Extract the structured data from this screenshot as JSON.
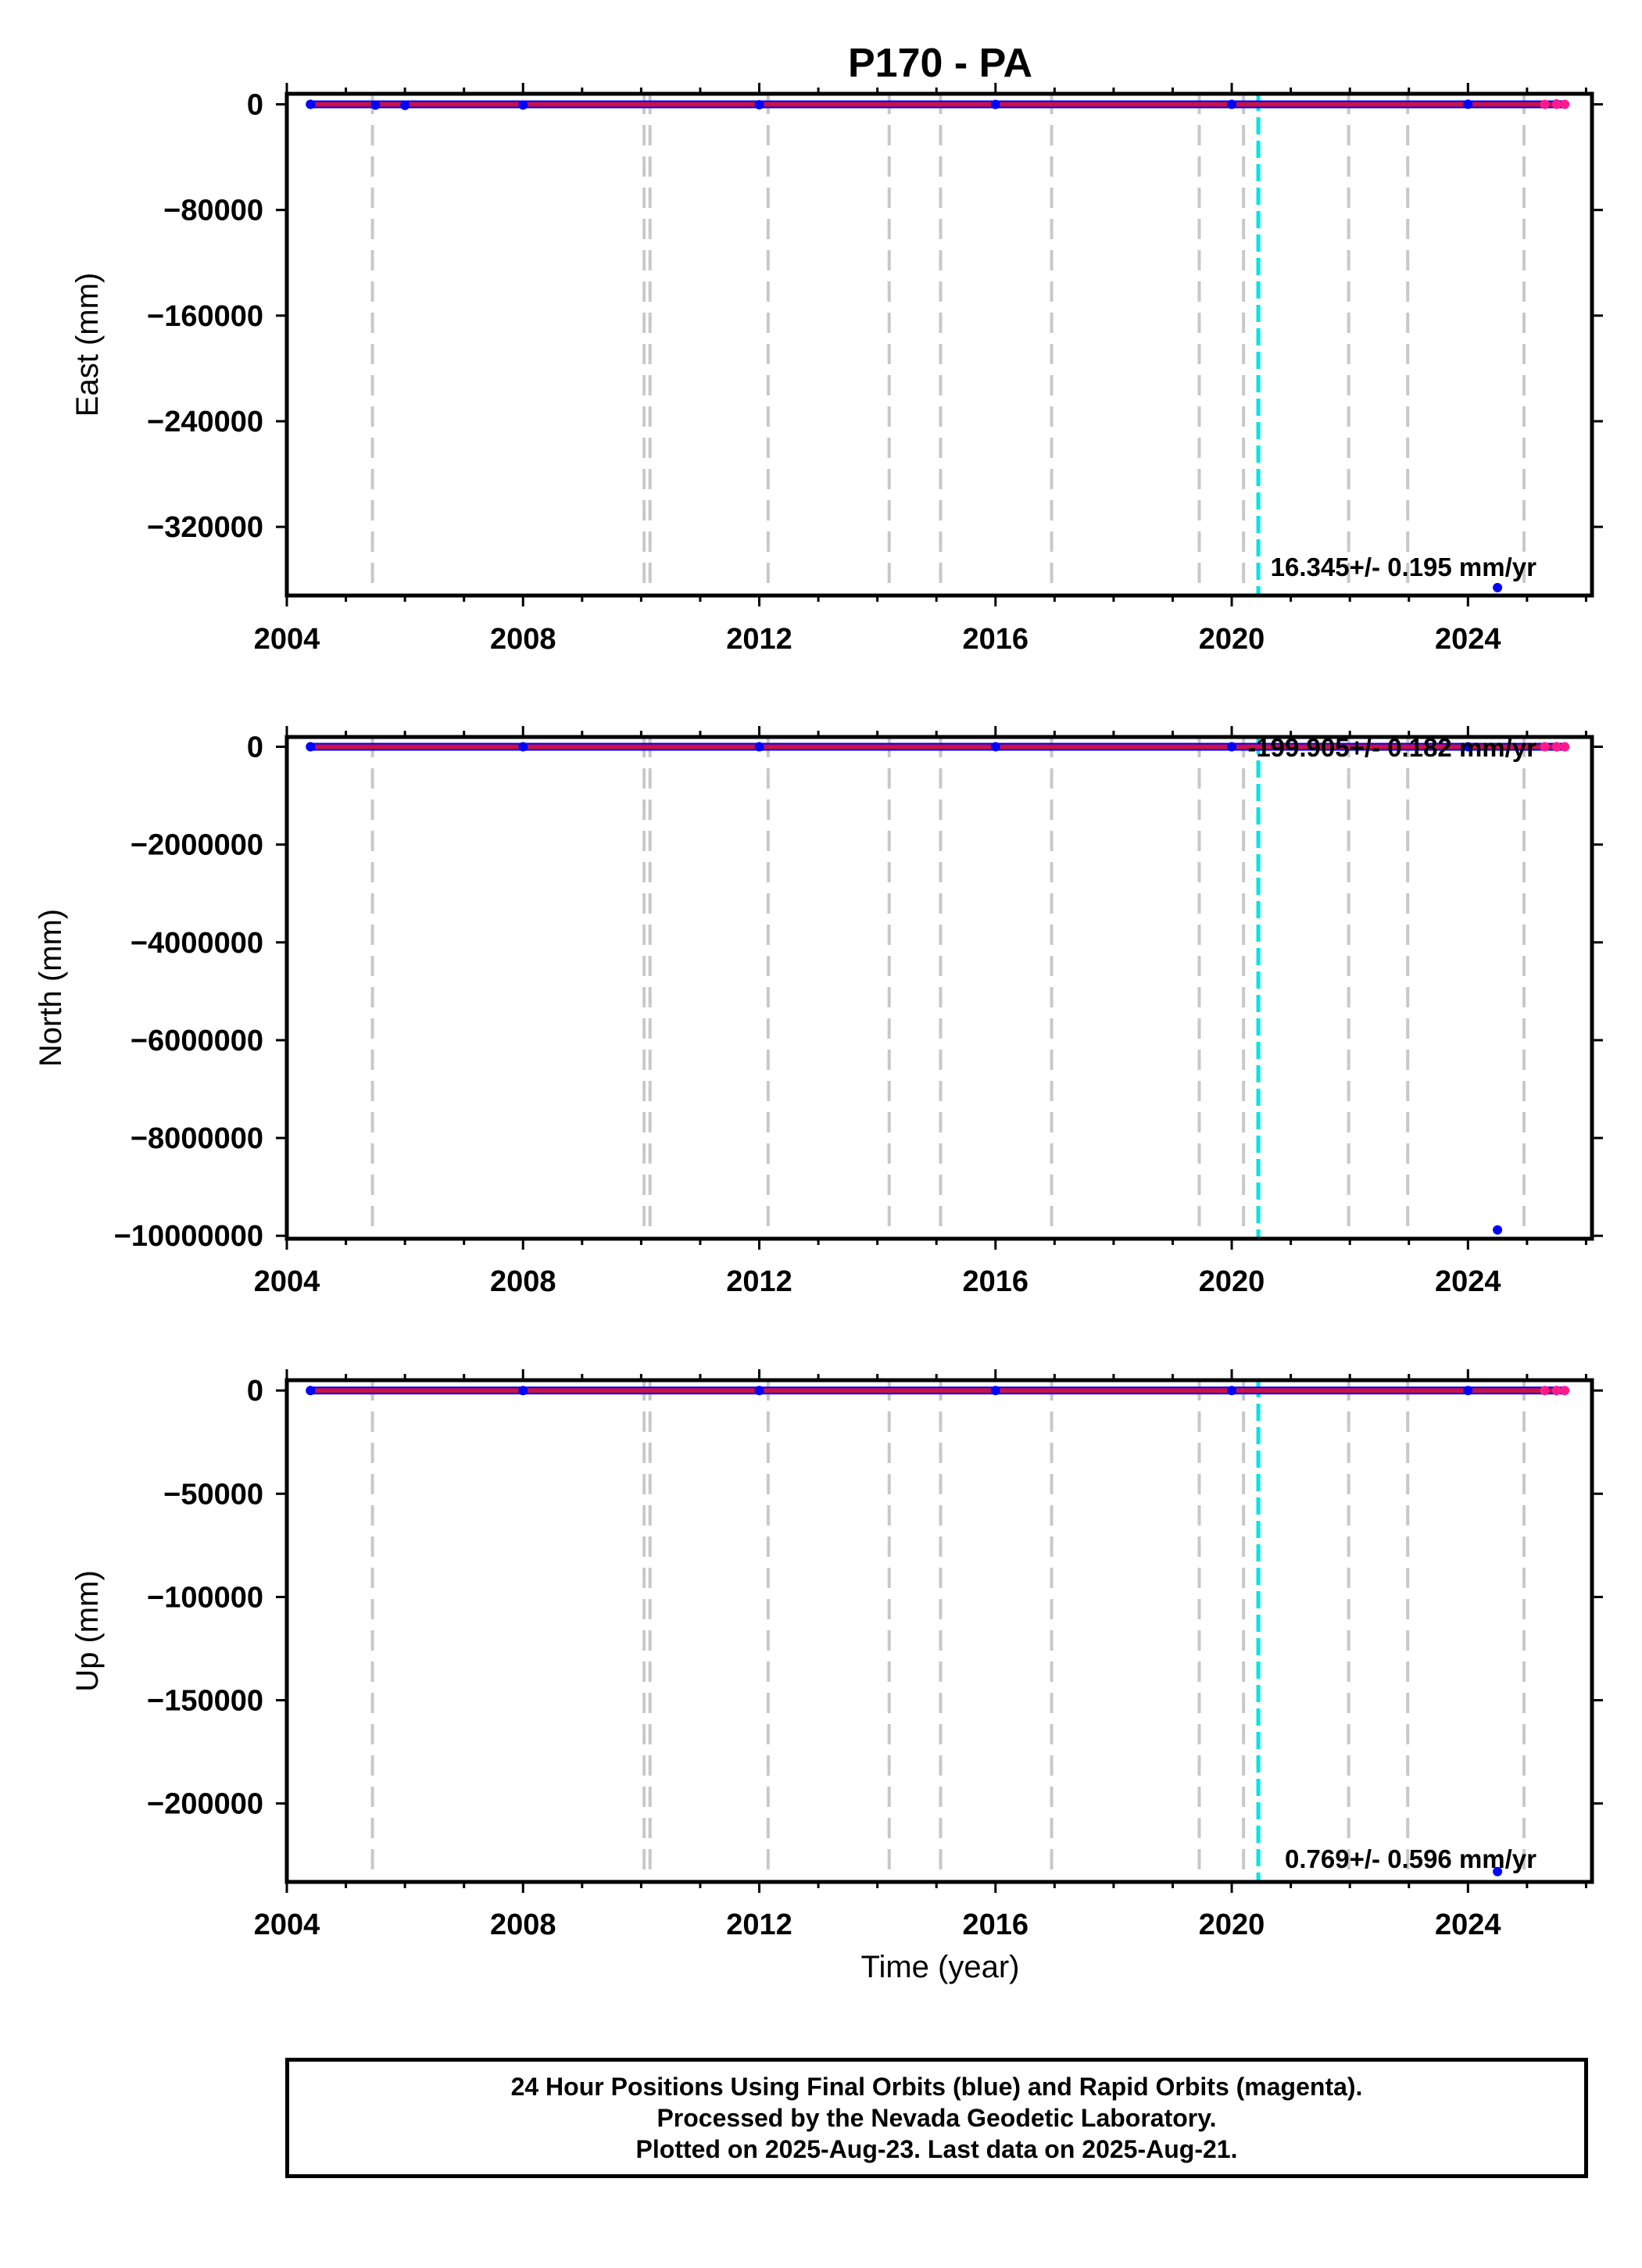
{
  "title": "P170 - PA",
  "xlabel": "Time (year)",
  "x_tick_labels": [
    "2004",
    "2008",
    "2012",
    "2016",
    "2020",
    "2024"
  ],
  "colors": {
    "final_orbits": "#0000ff",
    "rapid_orbits": "#ff1a8c",
    "series_line": "#cc1144",
    "equipment_change": "#c8c8c8",
    "earthquake": "#00e5e5"
  },
  "chart_data": [
    {
      "type": "scatter",
      "panel": "east",
      "ylabel": "East (mm)",
      "xlim": [
        2004.0,
        2026.1
      ],
      "ylim": [
        -372000,
        8000
      ],
      "y_ticks": [
        0,
        -80000,
        -160000,
        -240000,
        -320000
      ],
      "y_tick_labels": [
        "0",
        "−80000",
        "−160000",
        "−240000",
        "−320000"
      ],
      "rate": "16.345+/- 0.195 mm/yr",
      "series": [
        {
          "name": "Final Orbits",
          "color": "blue",
          "x": [
            2004.4,
            2005.5,
            2006.0,
            2008.0,
            2012.0,
            2016.0,
            2020.0,
            2024.0,
            2025.5,
            2024.5
          ],
          "y": [
            0,
            -600,
            -800,
            -500,
            -300,
            -100,
            0,
            100,
            200,
            -366000
          ]
        },
        {
          "name": "Rapid Orbits",
          "color": "magenta",
          "x": [
            2025.3,
            2025.5,
            2025.64
          ],
          "y": [
            0,
            0,
            0
          ]
        }
      ],
      "vlines_gray": [
        2005.45,
        2010.05,
        2010.15,
        2012.15,
        2014.2,
        2015.07,
        2016.95,
        2019.45,
        2020.2,
        2021.98,
        2022.98,
        2024.95
      ],
      "vline_cyan": 2020.45
    },
    {
      "type": "scatter",
      "panel": "north",
      "ylabel": "North (mm)",
      "xlim": [
        2004.0,
        2026.1
      ],
      "ylim": [
        -10060000,
        200000
      ],
      "y_ticks": [
        0,
        -2000000,
        -4000000,
        -6000000,
        -8000000,
        -10000000
      ],
      "y_tick_labels": [
        "0",
        "−2000000",
        "−4000000",
        "−6000000",
        "−8000000",
        "−10000000"
      ],
      "rate": "-199.905+/- 0.182 mm/yr",
      "series": [
        {
          "name": "Final Orbits",
          "color": "blue",
          "x": [
            2004.4,
            2008.0,
            2012.0,
            2016.0,
            2020.0,
            2024.0,
            2025.5,
            2024.5
          ],
          "y": [
            0,
            0,
            0,
            0,
            0,
            0,
            0,
            -9880000
          ]
        },
        {
          "name": "Rapid Orbits",
          "color": "magenta",
          "x": [
            2025.3,
            2025.5,
            2025.64
          ],
          "y": [
            0,
            0,
            0
          ]
        }
      ],
      "vlines_gray": [
        2005.45,
        2010.05,
        2010.15,
        2012.15,
        2014.2,
        2015.07,
        2016.95,
        2019.45,
        2020.2,
        2021.98,
        2022.98,
        2024.95
      ],
      "vline_cyan": 2020.45
    },
    {
      "type": "scatter",
      "panel": "up",
      "ylabel": "Up (mm)",
      "xlim": [
        2004.0,
        2026.1
      ],
      "ylim": [
        -238000,
        5000
      ],
      "y_ticks": [
        0,
        -50000,
        -100000,
        -150000,
        -200000
      ],
      "y_tick_labels": [
        "0",
        "−50000",
        "−100000",
        "−150000",
        "−200000"
      ],
      "rate": "0.769+/- 0.596 mm/yr",
      "series": [
        {
          "name": "Final Orbits",
          "color": "blue",
          "x": [
            2004.4,
            2008.0,
            2012.0,
            2016.0,
            2020.0,
            2024.0,
            2025.5,
            2024.5
          ],
          "y": [
            0,
            0,
            0,
            0,
            0,
            0,
            0,
            -233000
          ]
        },
        {
          "name": "Rapid Orbits",
          "color": "magenta",
          "x": [
            2025.3,
            2025.5,
            2025.64
          ],
          "y": [
            0,
            0,
            0
          ]
        }
      ],
      "vlines_gray": [
        2005.45,
        2010.05,
        2010.15,
        2012.15,
        2014.2,
        2015.07,
        2016.95,
        2019.45,
        2020.2,
        2021.98,
        2022.98,
        2024.95
      ],
      "vline_cyan": 2020.45
    }
  ],
  "caption": {
    "line1": "24 Hour Positions Using Final Orbits (blue) and Rapid Orbits (magenta).",
    "line2": "Processed by the Nevada Geodetic Laboratory.",
    "line3": "Plotted on 2025-Aug-23. Last data on 2025-Aug-21."
  }
}
